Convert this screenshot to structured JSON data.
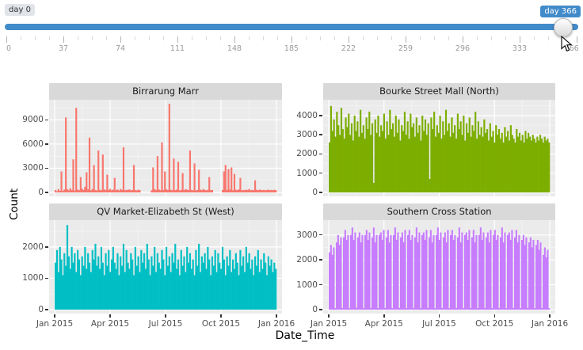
{
  "slider": {
    "min_label": "day 0",
    "value_label": "day 366",
    "min": 0,
    "max": 366,
    "value": 366,
    "accent_color": "#428bca",
    "tick_labels": [
      "0",
      "37",
      "74",
      "111",
      "148",
      "185",
      "222",
      "259",
      "296",
      "333",
      "366"
    ]
  },
  "axes": {
    "ylabel": "Count",
    "xlabel": "Date_Time",
    "x_tick_labels": [
      "Jan 2015",
      "Apr 2015",
      "Jul 2015",
      "Oct 2015",
      "Jan 2016"
    ]
  },
  "chart_data": [
    {
      "type": "bar",
      "title": "Birrarung Marr",
      "color": "#F8766D",
      "ylim": [
        0,
        11200
      ],
      "yticks": [
        0,
        3000,
        6000,
        9000
      ],
      "x_start": "Jan 2015",
      "x_end": "Jan 2016",
      "values": [
        300,
        150,
        420,
        200,
        2600,
        180,
        350,
        9300,
        400,
        250,
        520,
        300,
        4100,
        230,
        10500,
        350,
        280,
        1900,
        450,
        300,
        700,
        2500,
        380,
        6800,
        260,
        420,
        3400,
        300,
        250,
        5200,
        330,
        270,
        4700,
        380,
        290,
        2200,
        310,
        430,
        260,
        350,
        1800,
        280,
        360,
        240,
        420,
        310,
        5600,
        270,
        330,
        290,
        380,
        260,
        310,
        3400,
        290,
        250,
        340,
        280,
        0,
        0,
        0,
        0,
        0,
        0,
        0,
        260,
        3100,
        420,
        290,
        4500,
        350,
        280,
        6200,
        310,
        2600,
        380,
        300,
        11000,
        330,
        270,
        4200,
        290,
        350,
        3800,
        260,
        310,
        2400,
        280,
        420,
        330,
        290,
        5200,
        310,
        270,
        3600,
        250,
        300,
        2800,
        340,
        280,
        420,
        300,
        260,
        330,
        1900,
        280,
        310,
        0,
        0,
        0,
        0,
        0,
        0,
        290,
        2600,
        3400,
        310,
        2900,
        350,
        3100,
        270,
        2300,
        330,
        290,
        380,
        1800,
        260,
        310,
        280,
        340,
        300,
        420,
        260,
        310,
        290,
        1500,
        330,
        270,
        350,
        300,
        280,
        320,
        260,
        300,
        340,
        280,
        310,
        270,
        330,
        290
      ]
    },
    {
      "type": "bar",
      "title": "Bourke Street Mall (North)",
      "color": "#7CAE00",
      "ylim": [
        0,
        4700
      ],
      "yticks": [
        0,
        1000,
        2000,
        3000,
        4000
      ],
      "x_start": "Jan 2015",
      "x_end": "Jan 2016",
      "values": [
        2600,
        4500,
        3200,
        3800,
        2900,
        4200,
        3500,
        3000,
        4400,
        3300,
        2800,
        3900,
        3400,
        4100,
        3000,
        3600,
        2700,
        4000,
        3200,
        3700,
        2900,
        4300,
        3100,
        3500,
        2800,
        3900,
        3300,
        4200,
        3000,
        3600,
        500,
        3800,
        3100,
        4000,
        2900,
        3500,
        3200,
        4100,
        2800,
        3700,
        3000,
        4300,
        3300,
        3600,
        2900,
        4000,
        3100,
        3800,
        2700,
        3500,
        3200,
        4200,
        3000,
        3700,
        2800,
        4100,
        3400,
        3600,
        2900,
        3900,
        3100,
        3500,
        2700,
        4000,
        3200,
        3800,
        3000,
        3600,
        700,
        3900,
        3300,
        4200,
        2900,
        3500,
        3100,
        4000,
        2800,
        3700,
        3000,
        4300,
        3200,
        3600,
        2900,
        3900,
        3100,
        3500,
        2800,
        4100,
        3300,
        3700,
        3000,
        4000,
        2700,
        3600,
        3100,
        3900,
        2900,
        3500,
        3200,
        4200,
        2800,
        3700,
        3000,
        3400,
        2900,
        3800,
        3100,
        3300,
        2700,
        3600,
        2900,
        3200,
        2600,
        3500,
        3000,
        3300,
        2800,
        3100,
        2600,
        3400,
        2900,
        3200,
        2700,
        3500,
        3000,
        2800,
        2600,
        3300,
        2900,
        3100,
        2700,
        3000,
        2600,
        3200,
        2800,
        3100,
        2900,
        2700,
        3000,
        2800,
        2600,
        2900,
        2700,
        3000,
        2800,
        2600,
        2900,
        2700,
        2800,
        2600
      ]
    },
    {
      "type": "bar",
      "title": "QV Market-Elizabeth St (West)",
      "color": "#00BFC4",
      "ylim": [
        0,
        2780
      ],
      "yticks": [
        0,
        1000,
        2000
      ],
      "x_start": "Jan 2015",
      "x_end": "Jan 2016",
      "values": [
        1500,
        1900,
        1200,
        2000,
        1600,
        1100,
        1800,
        1400,
        2700,
        1700,
        1300,
        2000,
        1500,
        1800,
        1200,
        1900,
        1600,
        1100,
        1700,
        1400,
        2000,
        1300,
        1800,
        1500,
        1200,
        1900,
        1600,
        2100,
        1400,
        1700,
        1300,
        2000,
        1500,
        1100,
        1800,
        1400,
        1900,
        1200,
        1600,
        2000,
        1500,
        1300,
        1800,
        1100,
        1700,
        1400,
        2100,
        1200,
        1900,
        1500,
        1300,
        1800,
        1600,
        1100,
        2000,
        1400,
        1700,
        1200,
        1900,
        1500,
        1800,
        1300,
        2100,
        1600,
        1100,
        1700,
        1400,
        2000,
        1200,
        1800,
        1500,
        1300,
        1900,
        1600,
        1100,
        2000,
        1400,
        1700,
        1200,
        1800,
        1500,
        2100,
        1300,
        1600,
        1100,
        1900,
        1400,
        1700,
        1200,
        2000,
        1500,
        1800,
        1300,
        1600,
        1100,
        1900,
        1400,
        2100,
        1200,
        1700,
        1500,
        1800,
        1300,
        2000,
        1600,
        1100,
        1700,
        1400,
        1900,
        1200,
        1800,
        1500,
        1300,
        2000,
        1600,
        1100,
        1700,
        1400,
        1900,
        1200,
        1600,
        1300,
        1800,
        1500,
        1100,
        1900,
        1400,
        1700,
        1200,
        2000,
        1500,
        1800,
        1300,
        1600,
        1100,
        1700,
        1400,
        1900,
        1200,
        1600,
        1300,
        1800,
        1500,
        1100,
        1700,
        1400,
        1600,
        1200,
        1500,
        1300
      ]
    },
    {
      "type": "bar",
      "title": "Southern Cross Station",
      "color": "#C77CFF",
      "ylim": [
        0,
        3500
      ],
      "yticks": [
        0,
        1000,
        2000,
        3000
      ],
      "x_start": "Jan 2015",
      "x_end": "Jan 2016",
      "values": [
        2300,
        2600,
        2200,
        2500,
        60,
        2700,
        3000,
        2600,
        2900,
        70,
        2900,
        3200,
        2800,
        3000,
        60,
        3000,
        3300,
        2800,
        3100,
        80,
        2900,
        3100,
        2700,
        3000,
        60,
        3000,
        3200,
        2800,
        3100,
        70,
        2900,
        3300,
        2700,
        3000,
        60,
        3000,
        3100,
        2800,
        3200,
        70,
        2900,
        3200,
        2700,
        3000,
        60,
        3000,
        3300,
        2800,
        3100,
        70,
        2900,
        3100,
        2700,
        3200,
        60,
        3000,
        3200,
        2800,
        3000,
        70,
        2900,
        3300,
        2700,
        3100,
        60,
        3000,
        3100,
        2800,
        3200,
        70,
        2900,
        3200,
        2700,
        3000,
        60,
        3000,
        3300,
        2800,
        3100,
        70,
        2900,
        3100,
        2700,
        3200,
        60,
        3000,
        3200,
        2800,
        3000,
        70,
        2900,
        3300,
        2700,
        3100,
        60,
        3000,
        3100,
        2800,
        3200,
        70,
        2900,
        3200,
        2700,
        3000,
        60,
        3000,
        3300,
        2800,
        3100,
        70,
        2900,
        3100,
        2700,
        3200,
        60,
        3000,
        3200,
        2800,
        3000,
        70,
        2900,
        3300,
        2700,
        3100,
        60,
        3000,
        3100,
        2800,
        3200,
        70,
        2900,
        3200,
        2700,
        3000,
        60,
        2800,
        3000,
        2600,
        2900,
        70,
        2700,
        2900,
        2500,
        2800,
        60,
        2600,
        2800,
        2400,
        2700,
        70,
        2200,
        2500,
        2100,
        2400,
        60
      ]
    }
  ]
}
